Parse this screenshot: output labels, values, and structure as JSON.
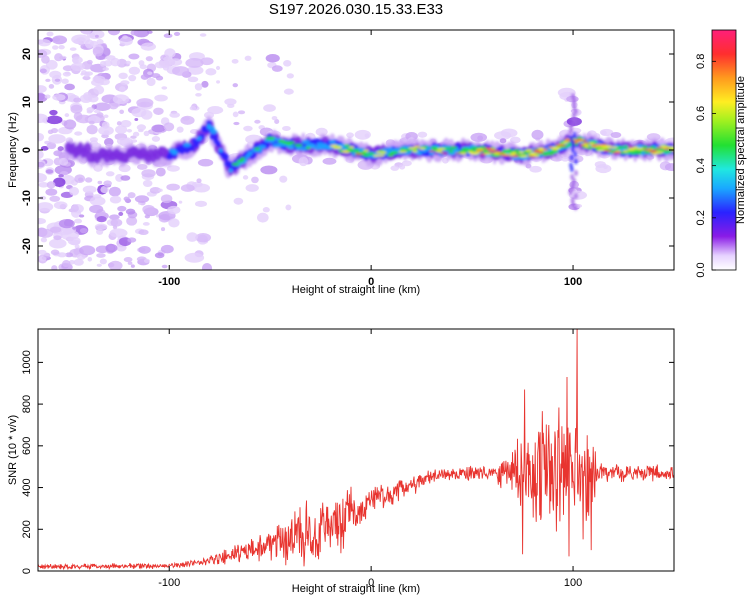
{
  "chart_data": [
    {
      "type": "heatmap",
      "title": "S197.2026.030.15.33.E33",
      "xlabel": "Height of straight line (km)",
      "ylabel": "Frequency (Hz)",
      "xlim": [
        -165,
        150
      ],
      "ylim": [
        -25,
        25
      ],
      "xticks": [
        -100,
        0,
        100
      ],
      "yticks": [
        -20,
        -10,
        0,
        10,
        20
      ],
      "colorbar": {
        "label": "Normalized spectral amplitude",
        "range": [
          0.0,
          0.92
        ],
        "ticks": [
          "0.0",
          "0.2",
          "0.4",
          "0.6",
          "0.8"
        ]
      },
      "ridge": [
        {
          "x": -140,
          "f": -1.5
        },
        {
          "x": -120,
          "f": -1
        },
        {
          "x": -100,
          "f": -1
        },
        {
          "x": -88,
          "f": 1
        },
        {
          "x": -80,
          "f": 5
        },
        {
          "x": -70,
          "f": -4
        },
        {
          "x": -60,
          "f": -1
        },
        {
          "x": -50,
          "f": 2
        },
        {
          "x": -40,
          "f": 1
        },
        {
          "x": -20,
          "f": 1
        },
        {
          "x": 0,
          "f": -1
        },
        {
          "x": 20,
          "f": 0
        },
        {
          "x": 50,
          "f": 0
        },
        {
          "x": 75,
          "f": -1
        },
        {
          "x": 90,
          "f": 0
        },
        {
          "x": 100,
          "f": 2
        },
        {
          "x": 120,
          "f": 0
        },
        {
          "x": 150,
          "f": 0
        }
      ]
    },
    {
      "type": "line",
      "xlabel": "Height of straight line (km)",
      "ylabel": "SNR (10 * v/v)",
      "xlim": [
        -165,
        150
      ],
      "ylim": [
        0,
        1160
      ],
      "xticks": [
        -100,
        0,
        100
      ],
      "yticks": [
        0,
        200,
        400,
        600,
        800,
        1000
      ],
      "color": "#e8342f",
      "envelope": [
        {
          "x": -165,
          "mean": 20,
          "amp": 15
        },
        {
          "x": -100,
          "mean": 25,
          "amp": 15
        },
        {
          "x": -85,
          "mean": 40,
          "amp": 20
        },
        {
          "x": -70,
          "mean": 70,
          "amp": 45
        },
        {
          "x": -50,
          "mean": 130,
          "amp": 100
        },
        {
          "x": -35,
          "mean": 180,
          "amp": 180
        },
        {
          "x": -20,
          "mean": 210,
          "amp": 180
        },
        {
          "x": -10,
          "mean": 260,
          "amp": 160
        },
        {
          "x": 0,
          "mean": 330,
          "amp": 90
        },
        {
          "x": 10,
          "mean": 360,
          "amp": 70
        },
        {
          "x": 20,
          "mean": 410,
          "amp": 60
        },
        {
          "x": 30,
          "mean": 450,
          "amp": 45
        },
        {
          "x": 40,
          "mean": 465,
          "amp": 40
        },
        {
          "x": 60,
          "mean": 470,
          "amp": 40
        },
        {
          "x": 70,
          "mean": 480,
          "amp": 150
        },
        {
          "x": 80,
          "mean": 480,
          "amp": 320
        },
        {
          "x": 95,
          "mean": 480,
          "amp": 380
        },
        {
          "x": 108,
          "mean": 470,
          "amp": 350
        },
        {
          "x": 112,
          "mean": 470,
          "amp": 50
        },
        {
          "x": 150,
          "mean": 470,
          "amp": 40
        }
      ],
      "peaks": [
        {
          "x": 76,
          "y": 870
        },
        {
          "x": 97,
          "y": 930
        },
        {
          "x": 102,
          "y": 1160
        },
        {
          "x": 109,
          "y": 880
        }
      ],
      "troughs": [
        {
          "x": 75,
          "y": 80
        },
        {
          "x": 98,
          "y": 70
        },
        {
          "x": 109,
          "y": 100
        }
      ]
    }
  ]
}
